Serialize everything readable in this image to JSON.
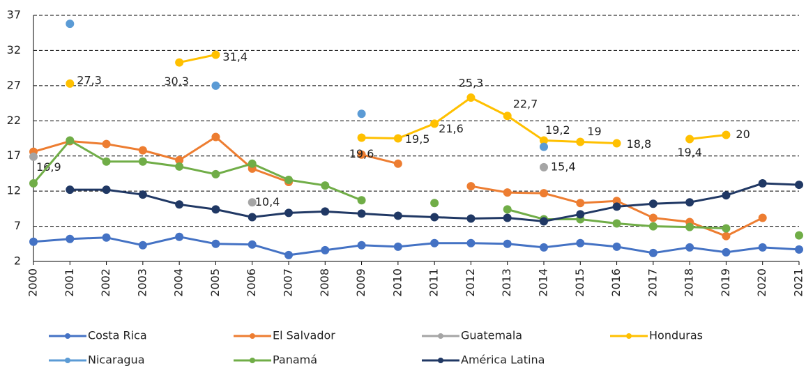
{
  "chart_data": {
    "type": "line",
    "x": [
      2000,
      2001,
      2002,
      2003,
      2004,
      2005,
      2006,
      2007,
      2008,
      2009,
      2010,
      2011,
      2012,
      2013,
      2014,
      2015,
      2016,
      2017,
      2018,
      2019,
      2020,
      2021
    ],
    "xlim": [
      2000,
      2021
    ],
    "xticks": [
      2000,
      2001,
      2002,
      2003,
      2004,
      2005,
      2006,
      2007,
      2008,
      2009,
      2010,
      2011,
      2012,
      2013,
      2014,
      2015,
      2016,
      2017,
      2018,
      2019,
      2020,
      2021
    ],
    "ylim": [
      2,
      37
    ],
    "yticks": [
      2,
      7,
      12,
      17,
      22,
      27,
      32,
      37
    ],
    "grid": true,
    "legend": "bottom",
    "series": [
      {
        "name": "Costa Rica",
        "color": "#4472c4",
        "values": [
          4.8,
          5.2,
          5.4,
          4.3,
          5.5,
          4.5,
          4.4,
          2.9,
          3.6,
          4.3,
          4.1,
          4.6,
          4.6,
          4.5,
          4.0,
          4.6,
          4.1,
          3.2,
          4.0,
          3.3,
          4.0,
          3.7
        ]
      },
      {
        "name": "El Salvador",
        "color": "#ed7d31",
        "values": [
          17.6,
          19.1,
          18.7,
          17.8,
          16.4,
          19.7,
          15.2,
          13.3,
          null,
          17.2,
          15.9,
          null,
          12.7,
          11.8,
          11.7,
          10.3,
          10.6,
          8.2,
          7.6,
          5.6,
          8.2,
          null
        ]
      },
      {
        "name": "Guatemala",
        "color": "#a5a5a5",
        "values": [
          16.9,
          null,
          null,
          null,
          null,
          null,
          10.4,
          null,
          null,
          null,
          null,
          null,
          null,
          null,
          15.4,
          null,
          null,
          null,
          null,
          null,
          null,
          null
        ],
        "value_labels": [
          "16,9",
          null,
          null,
          null,
          null,
          null,
          "10,4",
          null,
          null,
          null,
          null,
          null,
          null,
          null,
          "15,4",
          null,
          null,
          null,
          null,
          null,
          null,
          null
        ]
      },
      {
        "name": "Honduras",
        "color": "#ffc000",
        "values": [
          null,
          27.3,
          null,
          null,
          30.3,
          31.4,
          null,
          null,
          null,
          19.6,
          19.5,
          21.6,
          25.3,
          22.7,
          19.2,
          19,
          18.8,
          null,
          19.4,
          20,
          null,
          null
        ],
        "value_labels": [
          null,
          "27,3",
          null,
          null,
          "30,3",
          "31,4",
          null,
          null,
          null,
          "19,6",
          "19,5",
          "21,6",
          "25,3",
          "22,7",
          "19,2",
          "19",
          "18,8",
          null,
          "19,4",
          "20",
          null,
          null
        ]
      },
      {
        "name": "Nicaragua",
        "color": "#5b9bd5",
        "values": [
          null,
          35.8,
          null,
          null,
          null,
          27.0,
          null,
          null,
          null,
          23.0,
          null,
          null,
          null,
          null,
          18.3,
          null,
          null,
          null,
          null,
          null,
          null,
          null
        ]
      },
      {
        "name": "Panamá",
        "color": "#70ad47",
        "values": [
          13.1,
          19.2,
          16.2,
          16.2,
          15.5,
          14.4,
          15.9,
          13.6,
          12.8,
          10.7,
          null,
          10.3,
          null,
          9.4,
          8.0,
          8.0,
          7.4,
          7.0,
          6.9,
          6.7,
          null,
          5.7
        ]
      },
      {
        "name": "América Latina",
        "color": "#203864",
        "values": [
          null,
          12.2,
          12.2,
          11.5,
          10.1,
          9.4,
          8.3,
          8.9,
          9.1,
          8.8,
          8.5,
          8.3,
          8.1,
          8.2,
          7.7,
          8.7,
          9.8,
          10.2,
          10.4,
          11.4,
          13.1,
          12.9
        ]
      }
    ]
  }
}
